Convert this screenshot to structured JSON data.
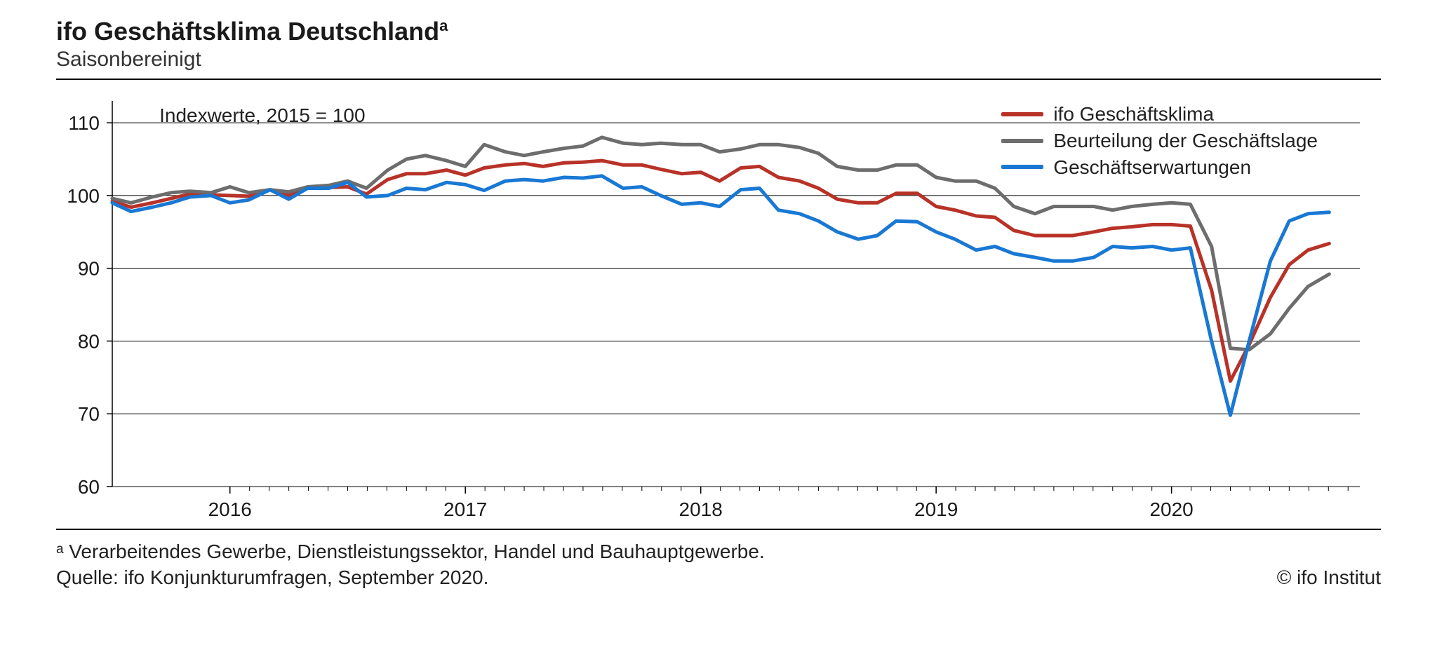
{
  "title": "ifo Geschäftsklima Deutschland",
  "title_sup": "a",
  "subtitle": "Saisonbereinigt",
  "index_note": "Indexwerte, 2015 = 100",
  "footnote": "ᵃ Verarbeitendes Gewerbe, Dienstleistungssektor, Handel und Bauhauptgewerbe.",
  "source": "Quelle: ifo Konjunkturumfragen, September 2020.",
  "copyright": "© ifo Institut",
  "chart": {
    "type": "line",
    "background_color": "#ffffff",
    "axis_color": "#000000",
    "grid_color": "#000000",
    "grid_linewidth": 1,
    "series_linewidth": 5,
    "font_size_tick": 28,
    "x": {
      "start": 2015.5,
      "end": 2020.8,
      "tick_years": [
        2016,
        2017,
        2018,
        2019,
        2020
      ]
    },
    "y": {
      "min": 60,
      "max": 113,
      "ticks": [
        60,
        70,
        80,
        90,
        100,
        110
      ]
    },
    "legend": {
      "items": [
        {
          "label": "ifo Geschäftsklima",
          "color": "#b83228"
        },
        {
          "label": "Beurteilung der Geschäftslage",
          "color": "#6d6d6d"
        },
        {
          "label": "Geschäftserwartungen",
          "color": "#1978d4"
        }
      ]
    },
    "series": [
      {
        "name": "ifo Geschäftsklima",
        "color": "#b83228",
        "data": [
          [
            2015.5,
            99.2
          ],
          [
            2015.58,
            98.4
          ],
          [
            2015.67,
            99.0
          ],
          [
            2015.75,
            99.6
          ],
          [
            2015.83,
            100.2
          ],
          [
            2015.92,
            100.1
          ],
          [
            2016.0,
            100.0
          ],
          [
            2016.08,
            99.9
          ],
          [
            2016.17,
            100.8
          ],
          [
            2016.25,
            100.0
          ],
          [
            2016.33,
            101.0
          ],
          [
            2016.42,
            101.1
          ],
          [
            2016.5,
            101.2
          ],
          [
            2016.58,
            100.2
          ],
          [
            2016.67,
            102.2
          ],
          [
            2016.75,
            103.0
          ],
          [
            2016.83,
            103.0
          ],
          [
            2016.92,
            103.5
          ],
          [
            2017.0,
            102.8
          ],
          [
            2017.08,
            103.8
          ],
          [
            2017.17,
            104.2
          ],
          [
            2017.25,
            104.4
          ],
          [
            2017.33,
            104.0
          ],
          [
            2017.42,
            104.5
          ],
          [
            2017.5,
            104.6
          ],
          [
            2017.58,
            104.8
          ],
          [
            2017.67,
            104.2
          ],
          [
            2017.75,
            104.2
          ],
          [
            2017.83,
            103.6
          ],
          [
            2017.92,
            103.0
          ],
          [
            2018.0,
            103.2
          ],
          [
            2018.08,
            102.0
          ],
          [
            2018.17,
            103.8
          ],
          [
            2018.25,
            104.0
          ],
          [
            2018.33,
            102.5
          ],
          [
            2018.42,
            102.0
          ],
          [
            2018.5,
            101.0
          ],
          [
            2018.58,
            99.5
          ],
          [
            2018.67,
            99.0
          ],
          [
            2018.75,
            99.0
          ],
          [
            2018.83,
            100.3
          ],
          [
            2018.92,
            100.3
          ],
          [
            2019.0,
            98.5
          ],
          [
            2019.08,
            98.0
          ],
          [
            2019.17,
            97.2
          ],
          [
            2019.25,
            97.0
          ],
          [
            2019.33,
            95.2
          ],
          [
            2019.42,
            94.5
          ],
          [
            2019.5,
            94.5
          ],
          [
            2019.58,
            94.5
          ],
          [
            2019.67,
            95.0
          ],
          [
            2019.75,
            95.5
          ],
          [
            2019.83,
            95.7
          ],
          [
            2019.92,
            96.0
          ],
          [
            2020.0,
            96.0
          ],
          [
            2020.08,
            95.8
          ],
          [
            2020.17,
            87.0
          ],
          [
            2020.25,
            74.5
          ],
          [
            2020.33,
            79.5
          ],
          [
            2020.42,
            86.0
          ],
          [
            2020.5,
            90.5
          ],
          [
            2020.58,
            92.5
          ],
          [
            2020.67,
            93.4
          ]
        ]
      },
      {
        "name": "Beurteilung der Geschäftslage",
        "color": "#6d6d6d",
        "data": [
          [
            2015.5,
            99.6
          ],
          [
            2015.58,
            99.0
          ],
          [
            2015.67,
            99.8
          ],
          [
            2015.75,
            100.4
          ],
          [
            2015.83,
            100.6
          ],
          [
            2015.92,
            100.4
          ],
          [
            2016.0,
            101.2
          ],
          [
            2016.08,
            100.4
          ],
          [
            2016.17,
            100.8
          ],
          [
            2016.25,
            100.5
          ],
          [
            2016.33,
            101.2
          ],
          [
            2016.42,
            101.4
          ],
          [
            2016.5,
            102.0
          ],
          [
            2016.58,
            101.0
          ],
          [
            2016.67,
            103.5
          ],
          [
            2016.75,
            105.0
          ],
          [
            2016.83,
            105.5
          ],
          [
            2016.92,
            104.8
          ],
          [
            2017.0,
            104.0
          ],
          [
            2017.08,
            107.0
          ],
          [
            2017.17,
            106.0
          ],
          [
            2017.25,
            105.5
          ],
          [
            2017.33,
            106.0
          ],
          [
            2017.42,
            106.5
          ],
          [
            2017.5,
            106.8
          ],
          [
            2017.58,
            108.0
          ],
          [
            2017.67,
            107.2
          ],
          [
            2017.75,
            107.0
          ],
          [
            2017.83,
            107.2
          ],
          [
            2017.92,
            107.0
          ],
          [
            2018.0,
            107.0
          ],
          [
            2018.08,
            106.0
          ],
          [
            2018.17,
            106.4
          ],
          [
            2018.25,
            107.0
          ],
          [
            2018.33,
            107.0
          ],
          [
            2018.42,
            106.6
          ],
          [
            2018.5,
            105.8
          ],
          [
            2018.58,
            104.0
          ],
          [
            2018.67,
            103.5
          ],
          [
            2018.75,
            103.5
          ],
          [
            2018.83,
            104.2
          ],
          [
            2018.92,
            104.2
          ],
          [
            2019.0,
            102.5
          ],
          [
            2019.08,
            102.0
          ],
          [
            2019.17,
            102.0
          ],
          [
            2019.25,
            101.0
          ],
          [
            2019.33,
            98.5
          ],
          [
            2019.42,
            97.5
          ],
          [
            2019.5,
            98.5
          ],
          [
            2019.58,
            98.5
          ],
          [
            2019.67,
            98.5
          ],
          [
            2019.75,
            98.0
          ],
          [
            2019.83,
            98.5
          ],
          [
            2019.92,
            98.8
          ],
          [
            2020.0,
            99.0
          ],
          [
            2020.08,
            98.8
          ],
          [
            2020.17,
            93.0
          ],
          [
            2020.25,
            79.0
          ],
          [
            2020.33,
            78.8
          ],
          [
            2020.42,
            81.0
          ],
          [
            2020.5,
            84.5
          ],
          [
            2020.58,
            87.5
          ],
          [
            2020.67,
            89.2
          ]
        ]
      },
      {
        "name": "Geschäftserwartungen",
        "color": "#1978d4",
        "data": [
          [
            2015.5,
            99.0
          ],
          [
            2015.58,
            97.8
          ],
          [
            2015.67,
            98.4
          ],
          [
            2015.75,
            99.0
          ],
          [
            2015.83,
            99.8
          ],
          [
            2015.92,
            100.0
          ],
          [
            2016.0,
            99.0
          ],
          [
            2016.08,
            99.4
          ],
          [
            2016.17,
            100.8
          ],
          [
            2016.25,
            99.5
          ],
          [
            2016.33,
            101.0
          ],
          [
            2016.42,
            101.0
          ],
          [
            2016.5,
            101.8
          ],
          [
            2016.58,
            99.8
          ],
          [
            2016.67,
            100.0
          ],
          [
            2016.75,
            101.0
          ],
          [
            2016.83,
            100.8
          ],
          [
            2016.92,
            101.8
          ],
          [
            2017.0,
            101.5
          ],
          [
            2017.08,
            100.7
          ],
          [
            2017.17,
            102.0
          ],
          [
            2017.25,
            102.2
          ],
          [
            2017.33,
            102.0
          ],
          [
            2017.42,
            102.5
          ],
          [
            2017.5,
            102.4
          ],
          [
            2017.58,
            102.7
          ],
          [
            2017.67,
            101.0
          ],
          [
            2017.75,
            101.2
          ],
          [
            2017.83,
            100.0
          ],
          [
            2017.92,
            98.8
          ],
          [
            2018.0,
            99.0
          ],
          [
            2018.08,
            98.5
          ],
          [
            2018.17,
            100.8
          ],
          [
            2018.25,
            101.0
          ],
          [
            2018.33,
            98.0
          ],
          [
            2018.42,
            97.5
          ],
          [
            2018.5,
            96.5
          ],
          [
            2018.58,
            95.0
          ],
          [
            2018.67,
            94.0
          ],
          [
            2018.75,
            94.5
          ],
          [
            2018.83,
            96.5
          ],
          [
            2018.92,
            96.4
          ],
          [
            2019.0,
            95.0
          ],
          [
            2019.08,
            94.0
          ],
          [
            2019.17,
            92.5
          ],
          [
            2019.25,
            93.0
          ],
          [
            2019.33,
            92.0
          ],
          [
            2019.42,
            91.5
          ],
          [
            2019.5,
            91.0
          ],
          [
            2019.58,
            91.0
          ],
          [
            2019.67,
            91.5
          ],
          [
            2019.75,
            93.0
          ],
          [
            2019.83,
            92.8
          ],
          [
            2019.92,
            93.0
          ],
          [
            2020.0,
            92.5
          ],
          [
            2020.08,
            92.8
          ],
          [
            2020.17,
            80.0
          ],
          [
            2020.25,
            69.8
          ],
          [
            2020.33,
            80.0
          ],
          [
            2020.42,
            91.0
          ],
          [
            2020.5,
            96.5
          ],
          [
            2020.58,
            97.5
          ],
          [
            2020.67,
            97.7
          ]
        ]
      }
    ]
  }
}
